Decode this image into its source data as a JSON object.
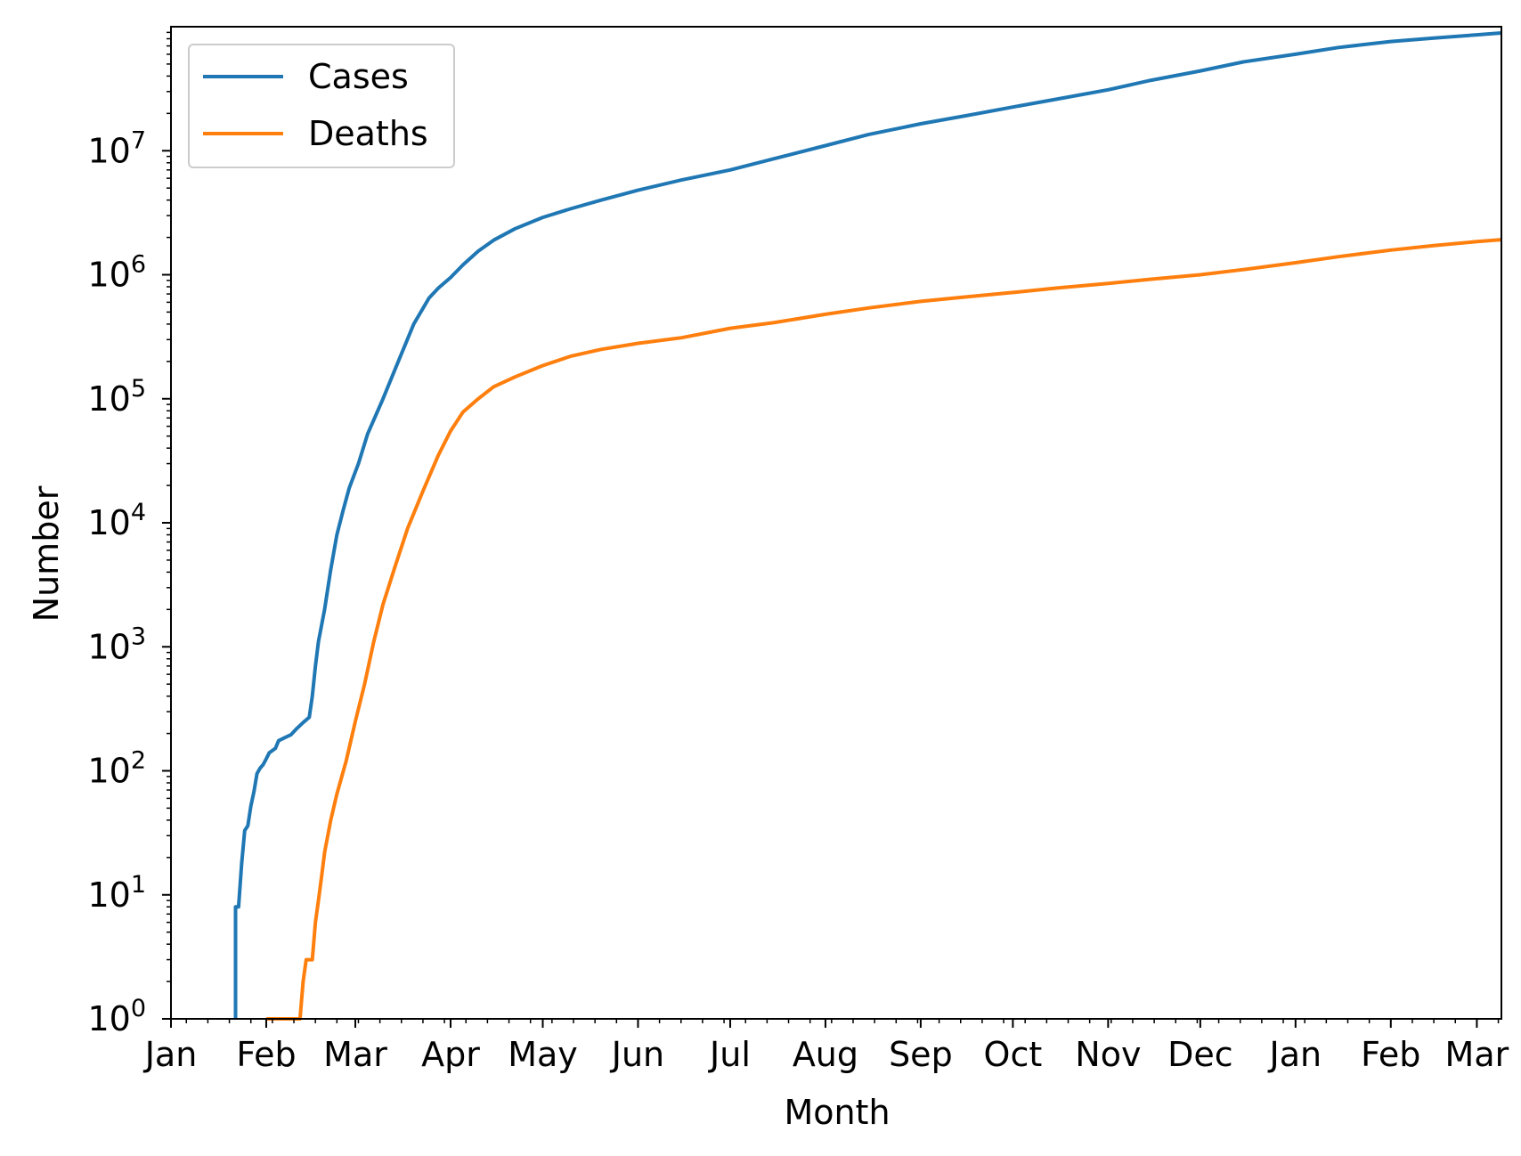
{
  "chart_data": {
    "type": "line",
    "title": "",
    "xlabel": "Month",
    "ylabel": "Number",
    "yscale": "log",
    "ylim": [
      1,
      100000000
    ],
    "xlim": [
      "2020-01-01",
      "2021-03-09"
    ],
    "grid": false,
    "legend_position": "upper left",
    "x_ticks": [
      {
        "date": "2020-01-01",
        "label": "Jan"
      },
      {
        "date": "2020-02-01",
        "label": "Feb"
      },
      {
        "date": "2020-03-01",
        "label": "Mar"
      },
      {
        "date": "2020-04-01",
        "label": "Apr"
      },
      {
        "date": "2020-05-01",
        "label": "May"
      },
      {
        "date": "2020-06-01",
        "label": "Jun"
      },
      {
        "date": "2020-07-01",
        "label": "Jul"
      },
      {
        "date": "2020-08-01",
        "label": "Aug"
      },
      {
        "date": "2020-09-01",
        "label": "Sep"
      },
      {
        "date": "2020-10-01",
        "label": "Oct"
      },
      {
        "date": "2020-11-01",
        "label": "Nov"
      },
      {
        "date": "2020-12-01",
        "label": "Dec"
      },
      {
        "date": "2021-01-01",
        "label": "Jan"
      },
      {
        "date": "2021-02-01",
        "label": "Feb"
      },
      {
        "date": "2021-03-01",
        "label": "Mar"
      }
    ],
    "y_ticks": [
      {
        "value": 1,
        "base": "10",
        "exp": "0"
      },
      {
        "value": 10,
        "base": "10",
        "exp": "1"
      },
      {
        "value": 100,
        "base": "10",
        "exp": "2"
      },
      {
        "value": 1000,
        "base": "10",
        "exp": "3"
      },
      {
        "value": 10000,
        "base": "10",
        "exp": "4"
      },
      {
        "value": 100000,
        "base": "10",
        "exp": "5"
      },
      {
        "value": 1000000,
        "base": "10",
        "exp": "6"
      },
      {
        "value": 10000000,
        "base": "10",
        "exp": "7"
      }
    ],
    "series": [
      {
        "name": "Cases",
        "color": "#1f77b4",
        "points": [
          [
            "2020-01-22",
            1
          ],
          [
            "2020-01-22",
            8
          ],
          [
            "2020-01-23",
            8
          ],
          [
            "2020-01-24",
            18
          ],
          [
            "2020-01-25",
            33
          ],
          [
            "2020-01-26",
            36
          ],
          [
            "2020-01-27",
            52
          ],
          [
            "2020-01-28",
            68
          ],
          [
            "2020-01-29",
            95
          ],
          [
            "2020-01-30",
            105
          ],
          [
            "2020-01-31",
            112
          ],
          [
            "2020-02-01",
            125
          ],
          [
            "2020-02-02",
            140
          ],
          [
            "2020-02-04",
            152
          ],
          [
            "2020-02-05",
            175
          ],
          [
            "2020-02-07",
            185
          ],
          [
            "2020-02-09",
            195
          ],
          [
            "2020-02-11",
            220
          ],
          [
            "2020-02-13",
            245
          ],
          [
            "2020-02-15",
            270
          ],
          [
            "2020-02-16",
            400
          ],
          [
            "2020-02-17",
            700
          ],
          [
            "2020-02-18",
            1100
          ],
          [
            "2020-02-20",
            2000
          ],
          [
            "2020-02-22",
            4200
          ],
          [
            "2020-02-24",
            8000
          ],
          [
            "2020-02-26",
            12500
          ],
          [
            "2020-02-28",
            19000
          ],
          [
            "2020-03-02",
            30000
          ],
          [
            "2020-03-05",
            52000
          ],
          [
            "2020-03-10",
            100000
          ],
          [
            "2020-03-15",
            200000
          ],
          [
            "2020-03-20",
            400000
          ],
          [
            "2020-03-25",
            650000
          ],
          [
            "2020-03-28",
            780000
          ],
          [
            "2020-04-01",
            950000
          ],
          [
            "2020-04-05",
            1200000
          ],
          [
            "2020-04-10",
            1550000
          ],
          [
            "2020-04-15",
            1900000
          ],
          [
            "2020-04-22",
            2350000
          ],
          [
            "2020-05-01",
            2900000
          ],
          [
            "2020-05-10",
            3400000
          ],
          [
            "2020-05-20",
            4000000
          ],
          [
            "2020-06-01",
            4800000
          ],
          [
            "2020-06-15",
            5800000
          ],
          [
            "2020-07-01",
            7000000
          ],
          [
            "2020-07-15",
            8600000
          ],
          [
            "2020-08-01",
            11000000
          ],
          [
            "2020-08-15",
            13500000
          ],
          [
            "2020-09-01",
            16500000
          ],
          [
            "2020-09-15",
            19000000
          ],
          [
            "2020-10-01",
            22500000
          ],
          [
            "2020-10-15",
            26000000
          ],
          [
            "2020-11-01",
            31000000
          ],
          [
            "2020-11-15",
            37000000
          ],
          [
            "2020-12-01",
            44000000
          ],
          [
            "2020-12-15",
            52000000
          ],
          [
            "2021-01-01",
            60000000
          ],
          [
            "2021-01-15",
            68000000
          ],
          [
            "2021-02-01",
            76000000
          ],
          [
            "2021-02-15",
            81000000
          ],
          [
            "2021-03-01",
            86000000
          ],
          [
            "2021-03-09",
            89000000
          ]
        ]
      },
      {
        "name": "Deaths",
        "color": "#ff7f0e",
        "points": [
          [
            "2020-02-01",
            1
          ],
          [
            "2020-02-12",
            1
          ],
          [
            "2020-02-13",
            2
          ],
          [
            "2020-02-14",
            3
          ],
          [
            "2020-02-16",
            3
          ],
          [
            "2020-02-17",
            6
          ],
          [
            "2020-02-18",
            9
          ],
          [
            "2020-02-19",
            14
          ],
          [
            "2020-02-20",
            22
          ],
          [
            "2020-02-22",
            40
          ],
          [
            "2020-02-24",
            65
          ],
          [
            "2020-02-27",
            120
          ],
          [
            "2020-03-01",
            250
          ],
          [
            "2020-03-04",
            500
          ],
          [
            "2020-03-07",
            1100
          ],
          [
            "2020-03-10",
            2200
          ],
          [
            "2020-03-14",
            4500
          ],
          [
            "2020-03-18",
            9000
          ],
          [
            "2020-03-23",
            18000
          ],
          [
            "2020-03-28",
            35000
          ],
          [
            "2020-04-01",
            55000
          ],
          [
            "2020-04-05",
            78000
          ],
          [
            "2020-04-10",
            100000
          ],
          [
            "2020-04-15",
            125000
          ],
          [
            "2020-04-22",
            150000
          ],
          [
            "2020-05-01",
            185000
          ],
          [
            "2020-05-10",
            220000
          ],
          [
            "2020-05-20",
            250000
          ],
          [
            "2020-06-01",
            280000
          ],
          [
            "2020-06-15",
            310000
          ],
          [
            "2020-07-01",
            370000
          ],
          [
            "2020-07-15",
            410000
          ],
          [
            "2020-08-01",
            480000
          ],
          [
            "2020-08-15",
            540000
          ],
          [
            "2020-09-01",
            610000
          ],
          [
            "2020-09-15",
            660000
          ],
          [
            "2020-10-01",
            720000
          ],
          [
            "2020-10-15",
            780000
          ],
          [
            "2020-11-01",
            850000
          ],
          [
            "2020-11-15",
            920000
          ],
          [
            "2020-12-01",
            1000000
          ],
          [
            "2020-12-15",
            1100000
          ],
          [
            "2021-01-01",
            1250000
          ],
          [
            "2021-01-15",
            1400000
          ],
          [
            "2021-02-01",
            1580000
          ],
          [
            "2021-02-15",
            1720000
          ],
          [
            "2021-03-01",
            1850000
          ],
          [
            "2021-03-09",
            1920000
          ]
        ]
      }
    ]
  }
}
